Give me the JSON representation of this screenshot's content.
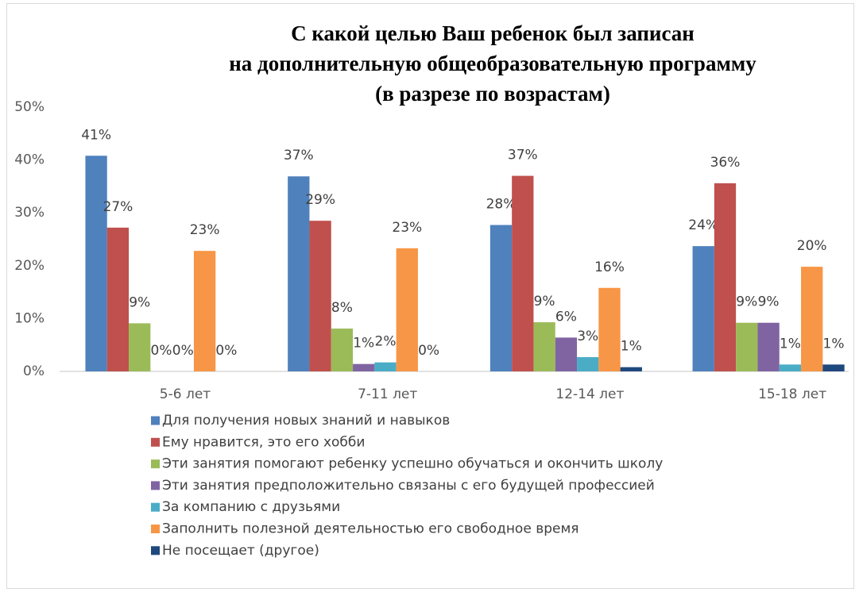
{
  "chart_data": {
    "type": "bar",
    "title": [
      "С какой целью Ваш ребенок был записан",
      "на дополнительную общеобразовательную программу",
      "(в разрезе по возрастам)"
    ],
    "categories": [
      "5-6 лет",
      "7-11 лет",
      "12-14 лет",
      "15-18 лет"
    ],
    "series": [
      {
        "name": "Для получения новых знаний и навыков",
        "color": "#4f81bd",
        "values": [
          40.8,
          36.9,
          27.7,
          23.7
        ],
        "value_labels": [
          "41%",
          "37%",
          "28%",
          "24%"
        ]
      },
      {
        "name": "Ему нравится, это его хобби",
        "color": "#c0504d",
        "values": [
          27.2,
          28.5,
          37.0,
          35.6
        ],
        "value_labels": [
          "27%",
          "29%",
          "37%",
          "36%"
        ]
      },
      {
        "name": "Эти занятия помогают ребенку успешно обучаться и окончить школу",
        "color": "#9bbb59",
        "values": [
          9.1,
          8.1,
          9.3,
          9.2
        ],
        "value_labels": [
          "9%",
          "8%",
          "9%",
          "9%"
        ]
      },
      {
        "name": "Эти занятия предположительно связаны с его будущей профессией",
        "color": "#8064a2",
        "values": [
          0,
          1.4,
          6.4,
          9.2
        ],
        "value_labels": [
          "0%",
          "1%",
          "6%",
          "9%"
        ]
      },
      {
        "name": "За компанию с друзьями",
        "color": "#4bacc6",
        "values": [
          0,
          1.7,
          2.7,
          1.3
        ],
        "value_labels": [
          "0%",
          "2%",
          "3%",
          "1%"
        ]
      },
      {
        "name": "Заполнить полезной деятельностью его свободное время",
        "color": "#f79646",
        "values": [
          22.8,
          23.3,
          15.8,
          19.8
        ],
        "value_labels": [
          "23%",
          "23%",
          "16%",
          "20%"
        ]
      },
      {
        "name": "Не посещает (другое)",
        "color": "#1f497d",
        "values": [
          0,
          0,
          0.8,
          1.3
        ],
        "value_labels": [
          "0%",
          "0%",
          "1%",
          "1%"
        ]
      }
    ],
    "ylim": [
      0,
      50
    ],
    "yticks": [
      {
        "value": 0,
        "label": "0%"
      },
      {
        "value": 10,
        "label": "10%"
      },
      {
        "value": 20,
        "label": "20%"
      },
      {
        "value": 30,
        "label": "30%"
      },
      {
        "value": 40,
        "label": "40%"
      },
      {
        "value": 50,
        "label": "50%"
      }
    ],
    "grid": false,
    "legend": "bottom"
  }
}
